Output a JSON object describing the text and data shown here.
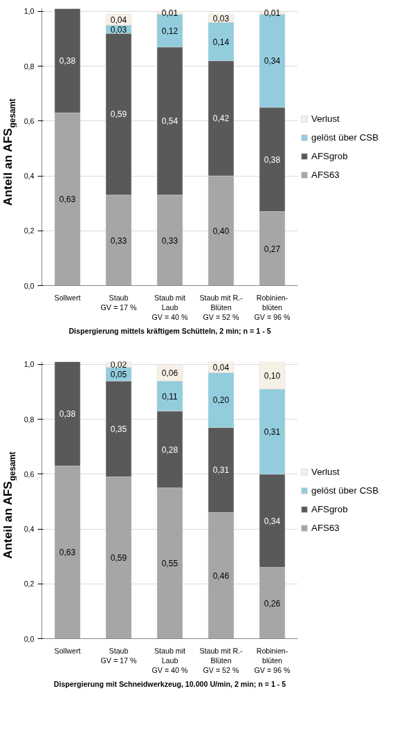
{
  "chart_data": [
    {
      "type": "bar",
      "stacked": true,
      "categories": [
        "Sollwert",
        "Staub\nGV = 17 %",
        "Staub mit\nLaub\nGV = 40 %",
        "Staub mit R.-\nBlüten\nGV = 52 %",
        "Robinien-\nblüten\nGV = 96 %"
      ],
      "xlabel": "Dispergierung mittels kräftigem Schütteln, 2 min; n = 1 - 5",
      "ylabel": "Anteil an AFS$_{gesamt}$",
      "ylim": [
        0,
        1.01
      ],
      "yticks": [
        {
          "value": 0,
          "label": "0,0"
        },
        {
          "value": 0.2,
          "label": "0,2"
        },
        {
          "value": 0.4,
          "label": "0,4"
        },
        {
          "value": 0.6,
          "label": "0,6"
        },
        {
          "value": 0.8,
          "label": "0,8"
        },
        {
          "value": 1.0,
          "label": "1,0"
        }
      ],
      "grid": "y",
      "legend": "right",
      "series": [
        {
          "name": "AFS63",
          "color": "#a6a6a6",
          "values": [
            0.63,
            0.33,
            0.33,
            0.4,
            0.27
          ],
          "value_labels": [
            "0,63",
            "0,33",
            "0,33",
            "0,40",
            "0,27"
          ]
        },
        {
          "name": "AFSgrob",
          "color": "#595959",
          "values": [
            0.38,
            0.59,
            0.54,
            0.42,
            0.38
          ],
          "value_labels": [
            "0,38",
            "0,59",
            "0,54",
            "0,42",
            "0,38"
          ]
        },
        {
          "name": "gelöst über CSB",
          "color": "#93cddd",
          "values": [
            null,
            0.03,
            0.12,
            0.14,
            0.34
          ],
          "value_labels": [
            null,
            "0,03",
            "0,12",
            "0,14",
            "0,34"
          ]
        },
        {
          "name": "Verlust",
          "color": "#f7f0e6",
          "values": [
            null,
            0.04,
            0.01,
            0.03,
            0.01
          ],
          "value_labels": [
            null,
            "0,04",
            "0,01",
            "0,03",
            "0,01"
          ]
        }
      ]
    },
    {
      "type": "bar",
      "stacked": true,
      "categories": [
        "Sollwert",
        "Staub\nGV = 17 %",
        "Staub mit\nLaub\nGV = 40 %",
        "Staub mit R.-\nBlüten\nGV = 52 %",
        "Robinien-\nblüten\nGV = 96 %"
      ],
      "xlabel": "Dispergierung mit Schneidwerkzeug, 10.000 U/min, 2 min; n = 1 - 5",
      "ylabel": "Anteil an AFS$_{gesamt}$",
      "ylim": [
        0,
        1.01
      ],
      "yticks": [
        {
          "value": 0,
          "label": "0,0"
        },
        {
          "value": 0.2,
          "label": "0,2"
        },
        {
          "value": 0.4,
          "label": "0,4"
        },
        {
          "value": 0.6,
          "label": "0,6"
        },
        {
          "value": 0.8,
          "label": "0,8"
        },
        {
          "value": 1.0,
          "label": "1,0"
        }
      ],
      "grid": "y",
      "legend": "right",
      "series": [
        {
          "name": "AFS63",
          "color": "#a6a6a6",
          "values": [
            0.63,
            0.59,
            0.55,
            0.46,
            0.26
          ],
          "value_labels": [
            "0,63",
            "0,59",
            "0,55",
            "0,46",
            "0,26"
          ]
        },
        {
          "name": "AFSgrob",
          "color": "#595959",
          "values": [
            0.38,
            0.35,
            0.28,
            0.31,
            0.34
          ],
          "value_labels": [
            "0,38",
            "0,35",
            "0,28",
            "0,31",
            "0,34"
          ]
        },
        {
          "name": "gelöst über CSB",
          "color": "#93cddd",
          "values": [
            null,
            0.05,
            0.11,
            0.2,
            0.31
          ],
          "value_labels": [
            null,
            "0,05",
            "0,11",
            "0,20",
            "0,31"
          ]
        },
        {
          "name": "Verlust",
          "color": "#f7f0e6",
          "values": [
            null,
            0.02,
            0.06,
            0.04,
            0.1
          ],
          "value_labels": [
            null,
            "0,02",
            "0,06",
            "0,04",
            "0,10"
          ]
        }
      ]
    }
  ]
}
